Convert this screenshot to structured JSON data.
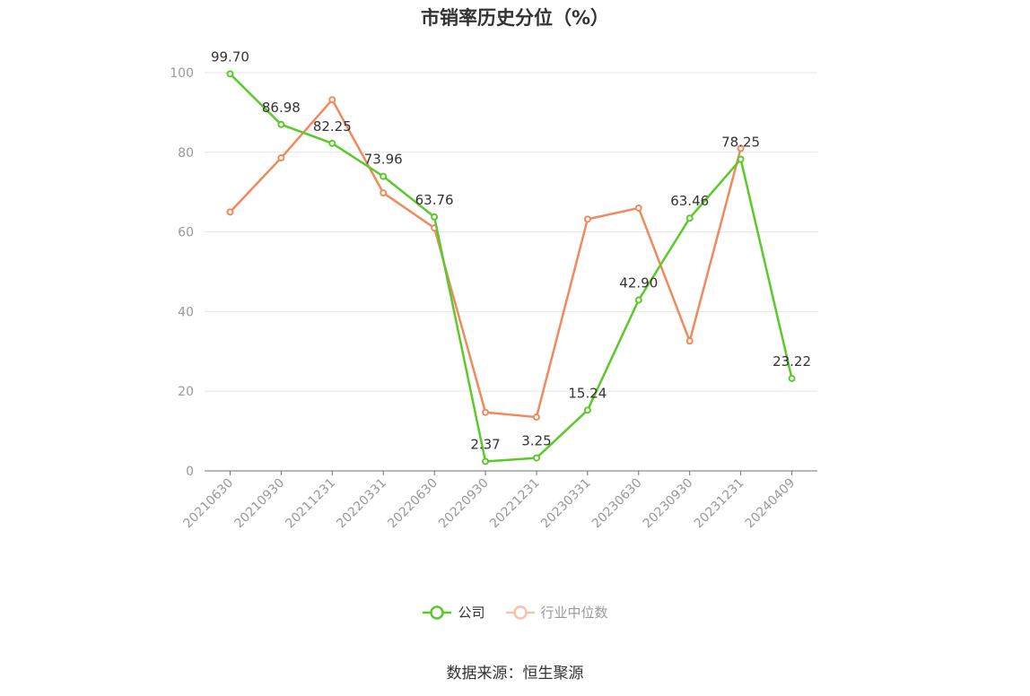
{
  "chart_data": {
    "type": "line",
    "title": "市销率历史分位（%）",
    "categories": [
      "20210630",
      "20210930",
      "20211231",
      "20220331",
      "20220630",
      "20220930",
      "20221231",
      "20230331",
      "20230630",
      "20230930",
      "20231231",
      "20240409"
    ],
    "ylim": [
      0,
      100
    ],
    "yticks": [
      0,
      20,
      40,
      60,
      80,
      100
    ],
    "grid": true,
    "legend_position": "bottom",
    "series": [
      {
        "name": "公司",
        "color": "#5cc92a",
        "values": [
          99.7,
          86.98,
          82.25,
          73.96,
          63.76,
          2.37,
          3.25,
          15.24,
          42.9,
          63.46,
          78.25,
          23.22
        ],
        "labels": [
          "99.70",
          "86.98",
          "82.25",
          "73.96",
          "63.76",
          "2.37",
          "3.25",
          "15.24",
          "42.90",
          "63.46",
          "78.25",
          "23.22"
        ]
      },
      {
        "name": "行业中位数",
        "color": "#f08a5d",
        "values": [
          65.0,
          78.6,
          93.2,
          69.8,
          61.0,
          14.7,
          13.5,
          63.2,
          66.0,
          32.6,
          81.0,
          null
        ]
      }
    ]
  },
  "source": "数据来源：恒生聚源"
}
